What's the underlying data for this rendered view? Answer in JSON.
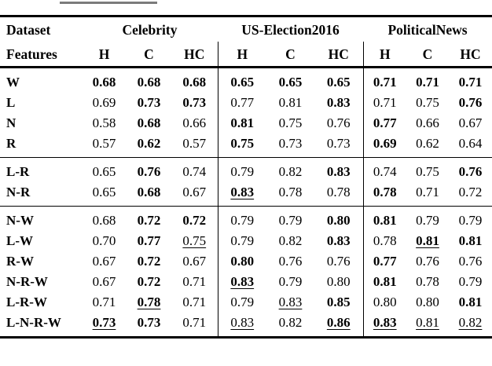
{
  "page": {
    "background": "#ffffff",
    "top_fragment_color": "#7b7b7b",
    "rule_color": "#000000",
    "text_color": "#000000"
  },
  "table": {
    "header": {
      "dataset_label": "Dataset",
      "features_label": "Features",
      "groups": [
        {
          "label": "Celebrity",
          "cols": [
            "H",
            "C",
            "HC"
          ]
        },
        {
          "label": "US-Election2016",
          "cols": [
            "H",
            "C",
            "HC"
          ]
        },
        {
          "label": "PoliticalNews",
          "cols": [
            "H",
            "C",
            "HC"
          ]
        }
      ]
    },
    "sections": [
      {
        "rows": [
          {
            "feature": "W",
            "cells": [
              {
                "v": "0.68",
                "b": true
              },
              {
                "v": "0.68",
                "b": true
              },
              {
                "v": "0.68",
                "b": true
              },
              {
                "v": "0.65",
                "b": true
              },
              {
                "v": "0.65",
                "b": true
              },
              {
                "v": "0.65",
                "b": true
              },
              {
                "v": "0.71",
                "b": true
              },
              {
                "v": "0.71",
                "b": true
              },
              {
                "v": "0.71",
                "b": true
              }
            ]
          },
          {
            "feature": "L",
            "cells": [
              {
                "v": "0.69"
              },
              {
                "v": "0.73",
                "b": true
              },
              {
                "v": "0.73",
                "b": true
              },
              {
                "v": "0.77"
              },
              {
                "v": "0.81"
              },
              {
                "v": "0.83",
                "b": true
              },
              {
                "v": "0.71"
              },
              {
                "v": "0.75"
              },
              {
                "v": "0.76",
                "b": true
              }
            ]
          },
          {
            "feature": "N",
            "cells": [
              {
                "v": "0.58"
              },
              {
                "v": "0.68",
                "b": true
              },
              {
                "v": "0.66"
              },
              {
                "v": "0.81",
                "b": true
              },
              {
                "v": "0.75"
              },
              {
                "v": "0.76"
              },
              {
                "v": "0.77",
                "b": true
              },
              {
                "v": "0.66"
              },
              {
                "v": "0.67"
              }
            ]
          },
          {
            "feature": "R",
            "cells": [
              {
                "v": "0.57"
              },
              {
                "v": "0.62",
                "b": true
              },
              {
                "v": "0.57"
              },
              {
                "v": "0.75",
                "b": true
              },
              {
                "v": "0.73"
              },
              {
                "v": "0.73"
              },
              {
                "v": "0.69",
                "b": true
              },
              {
                "v": "0.62"
              },
              {
                "v": "0.64"
              }
            ]
          }
        ]
      },
      {
        "rows": [
          {
            "feature": "L-R",
            "cells": [
              {
                "v": "0.65"
              },
              {
                "v": "0.76",
                "b": true
              },
              {
                "v": "0.74"
              },
              {
                "v": "0.79"
              },
              {
                "v": "0.82"
              },
              {
                "v": "0.83",
                "b": true
              },
              {
                "v": "0.74"
              },
              {
                "v": "0.75"
              },
              {
                "v": "0.76",
                "b": true
              }
            ]
          },
          {
            "feature": "N-R",
            "cells": [
              {
                "v": "0.65"
              },
              {
                "v": "0.68",
                "b": true
              },
              {
                "v": "0.67"
              },
              {
                "v": "0.83",
                "b": true,
                "u": true
              },
              {
                "v": "0.78"
              },
              {
                "v": "0.78"
              },
              {
                "v": "0.78",
                "b": true
              },
              {
                "v": "0.71"
              },
              {
                "v": "0.72"
              }
            ]
          }
        ]
      },
      {
        "rows": [
          {
            "feature": "N-W",
            "cells": [
              {
                "v": "0.68"
              },
              {
                "v": "0.72",
                "b": true
              },
              {
                "v": "0.72",
                "b": true
              },
              {
                "v": "0.79"
              },
              {
                "v": "0.79"
              },
              {
                "v": "0.80",
                "b": true
              },
              {
                "v": "0.81",
                "b": true
              },
              {
                "v": "0.79"
              },
              {
                "v": "0.79"
              }
            ]
          },
          {
            "feature": "L-W",
            "cells": [
              {
                "v": "0.70"
              },
              {
                "v": "0.77",
                "b": true
              },
              {
                "v": "0.75",
                "u": true
              },
              {
                "v": "0.79"
              },
              {
                "v": "0.82"
              },
              {
                "v": "0.83",
                "b": true
              },
              {
                "v": "0.78"
              },
              {
                "v": "0.81",
                "b": true,
                "u": true
              },
              {
                "v": "0.81",
                "b": true
              }
            ]
          },
          {
            "feature": "R-W",
            "cells": [
              {
                "v": "0.67"
              },
              {
                "v": "0.72",
                "b": true
              },
              {
                "v": "0.67"
              },
              {
                "v": "0.80",
                "b": true
              },
              {
                "v": "0.76"
              },
              {
                "v": "0.76"
              },
              {
                "v": "0.77",
                "b": true
              },
              {
                "v": "0.76"
              },
              {
                "v": "0.76"
              }
            ]
          },
          {
            "feature": "N-R-W",
            "cells": [
              {
                "v": "0.67"
              },
              {
                "v": "0.72",
                "b": true
              },
              {
                "v": "0.71"
              },
              {
                "v": "0.83",
                "b": true,
                "u": true
              },
              {
                "v": "0.79"
              },
              {
                "v": "0.80"
              },
              {
                "v": "0.81",
                "b": true
              },
              {
                "v": "0.78"
              },
              {
                "v": "0.79"
              }
            ]
          },
          {
            "feature": "L-R-W",
            "cells": [
              {
                "v": "0.71"
              },
              {
                "v": "0.78",
                "b": true,
                "u": true
              },
              {
                "v": "0.71"
              },
              {
                "v": "0.79"
              },
              {
                "v": "0.83",
                "u": true
              },
              {
                "v": "0.85",
                "b": true
              },
              {
                "v": "0.80"
              },
              {
                "v": "0.80"
              },
              {
                "v": "0.81",
                "b": true
              }
            ]
          },
          {
            "feature": "L-N-R-W",
            "cells": [
              {
                "v": "0.73",
                "b": true,
                "u": true
              },
              {
                "v": "0.73",
                "b": true
              },
              {
                "v": "0.71"
              },
              {
                "v": "0.83",
                "u": true
              },
              {
                "v": "0.82"
              },
              {
                "v": "0.86",
                "b": true,
                "u": true
              },
              {
                "v": "0.83",
                "b": true,
                "u": true
              },
              {
                "v": "0.81",
                "u": true
              },
              {
                "v": "0.82",
                "u": true
              }
            ]
          }
        ]
      }
    ]
  }
}
